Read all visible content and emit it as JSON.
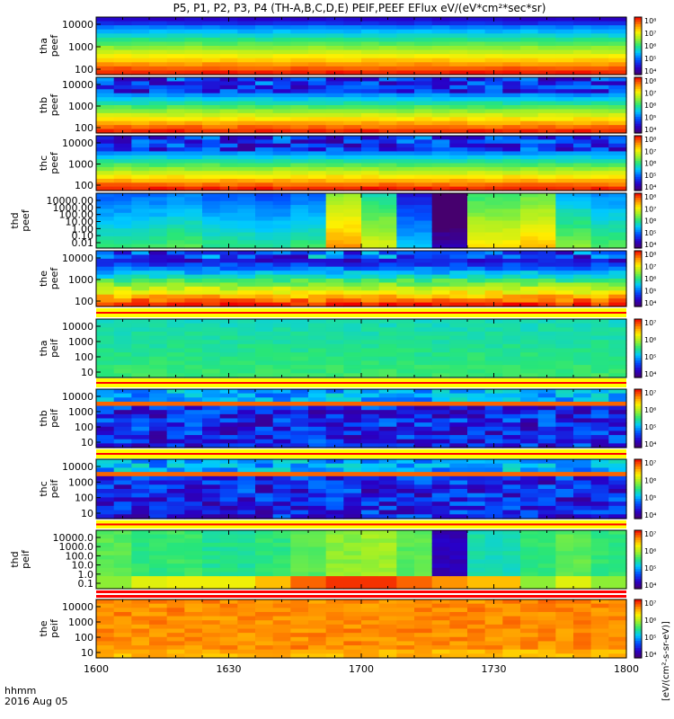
{
  "title": "P5, P1, P2, P3, P4 (TH-A,B,C,D,E) PEIF,PEEF EFlux eV/(eV*cm²*sec*sr)",
  "time_axis": {
    "label_line1": "hhmm",
    "label_line2": "2016 Aug 05",
    "ticks": [
      "1600",
      "1630",
      "1700",
      "1730",
      "1800"
    ]
  },
  "colorbar_labels": {
    "electron": "[eV/(cm²-s-sr-eV)]",
    "ion": "[eV/(cm²-s-sr-eV)]"
  },
  "colors": {
    "frame": "#000000",
    "background": "#ffffff",
    "separator_red": "#ff0000",
    "separator_yellow": "#ffff00"
  },
  "chart_data": {
    "type": "heatmap",
    "x_range": [
      "1600",
      "1800"
    ],
    "colormap": "rainbow",
    "panels": [
      {
        "label_line1": "tha",
        "label_line2": "peef",
        "yscale": "log",
        "ylim": [
          10,
          30000
        ],
        "y_ticks": [
          "10000",
          "1000",
          "100"
        ],
        "cbar_ticks": [
          "10⁴",
          "10⁵",
          "10⁶",
          "10⁷",
          "10⁸"
        ],
        "pattern": "hot_low"
      },
      {
        "label_line1": "thb",
        "label_line2": "peef",
        "yscale": "log",
        "ylim": [
          10,
          30000
        ],
        "y_ticks": [
          "10000",
          "1000",
          "100"
        ],
        "cbar_ticks": [
          "10⁴",
          "10⁵",
          "10⁶",
          "10⁷",
          "10⁸"
        ],
        "pattern": "hot_low_banded"
      },
      {
        "label_line1": "thc",
        "label_line2": "peef",
        "yscale": "log",
        "ylim": [
          10,
          30000
        ],
        "y_ticks": [
          "10000",
          "1000",
          "100"
        ],
        "cbar_ticks": [
          "10⁴",
          "10⁵",
          "10⁶",
          "10⁷",
          "10⁸"
        ],
        "pattern": "hot_low_banded"
      },
      {
        "label_line1": "thd",
        "label_line2": "peef",
        "yscale": "log",
        "ylim": [
          0.01,
          10000
        ],
        "y_ticks": [
          "10000.00",
          "1000.00",
          "100.00",
          "10.00",
          "1.00",
          "0.10",
          "0.01"
        ],
        "cbar_ticks": [
          "10⁴",
          "10⁵",
          "10⁶",
          "10⁷",
          "10⁸"
        ],
        "pattern": "blocky_e"
      },
      {
        "label_line1": "the",
        "label_line2": "peef",
        "yscale": "log",
        "ylim": [
          10,
          30000
        ],
        "y_ticks": [
          "10000",
          "1000",
          "100"
        ],
        "cbar_ticks": [
          "10⁴",
          "10⁵",
          "10⁶",
          "10⁷",
          "10⁸"
        ],
        "pattern": "noisy_hot"
      },
      {
        "label_line1": "tha",
        "label_line2": "peif",
        "yscale": "log",
        "ylim": [
          5,
          30000
        ],
        "y_ticks": [
          "10000",
          "1000",
          "100",
          "10"
        ],
        "cbar_ticks": [
          "10⁴",
          "10⁵",
          "10⁶",
          "10⁷"
        ],
        "pattern": "green_uniform"
      },
      {
        "label_line1": "thb",
        "label_line2": "peif",
        "yscale": "log",
        "ylim": [
          5,
          30000
        ],
        "y_ticks": [
          "10000",
          "1000",
          "100",
          "10"
        ],
        "cbar_ticks": [
          "10⁴",
          "10⁵",
          "10⁶",
          "10⁷"
        ],
        "pattern": "blue_bands"
      },
      {
        "label_line1": "thc",
        "label_line2": "peif",
        "yscale": "log",
        "ylim": [
          5,
          30000
        ],
        "y_ticks": [
          "10000",
          "1000",
          "100",
          "10"
        ],
        "cbar_ticks": [
          "10⁴",
          "10⁵",
          "10⁶",
          "10⁷"
        ],
        "pattern": "blue_bands"
      },
      {
        "label_line1": "thd",
        "label_line2": "peif",
        "yscale": "log",
        "ylim": [
          0.05,
          30000
        ],
        "y_ticks": [
          "10000.0",
          "1000.0",
          "100.0",
          "10.0",
          "1.0",
          "0.1"
        ],
        "cbar_ticks": [
          "10⁴",
          "10⁵",
          "10⁶",
          "10⁷"
        ],
        "pattern": "blocky_i"
      },
      {
        "label_line1": "the",
        "label_line2": "peif",
        "yscale": "log",
        "ylim": [
          5,
          30000
        ],
        "y_ticks": [
          "10000",
          "1000",
          "100",
          "10"
        ],
        "cbar_ticks": [
          "10⁴",
          "10⁵",
          "10⁶",
          "10⁷"
        ],
        "pattern": "orange_uniform"
      }
    ]
  }
}
